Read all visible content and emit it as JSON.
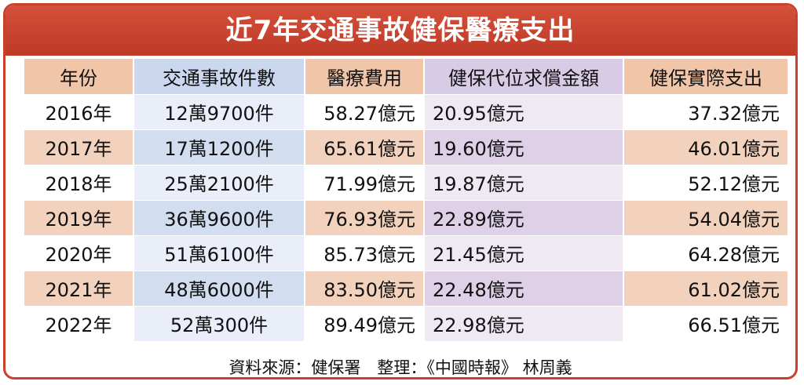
{
  "title": "近7年交通事故健保醫療支出",
  "table": {
    "header": [
      "年份",
      "交通事故件數",
      "醫療費用",
      "健保代位求償金額",
      "健保實際支出"
    ],
    "rows": [
      [
        "2016年",
        "12萬9700件",
        "58.27億元",
        "20.95億元",
        "37.32億元"
      ],
      [
        "2017年",
        "17萬1200件",
        "65.61億元",
        "19.60億元",
        "46.01億元"
      ],
      [
        "2018年",
        "25萬2100件",
        "71.99億元",
        "19.87億元",
        "52.12億元"
      ],
      [
        "2019年",
        "36萬9600件",
        "76.93億元",
        "22.89億元",
        "54.04億元"
      ],
      [
        "2020年",
        "51萬6100件",
        "85.73億元",
        "21.45億元",
        "64.28億元"
      ],
      [
        "2021年",
        "48萬6000件",
        "83.50億元",
        "22.48億元",
        "61.02億元"
      ],
      [
        "2022年",
        "52萬300件",
        "89.49億元",
        "22.98億元",
        "66.51億元"
      ]
    ]
  },
  "source": "資料來源：健保署　整理：《中國時報》 林周義"
}
